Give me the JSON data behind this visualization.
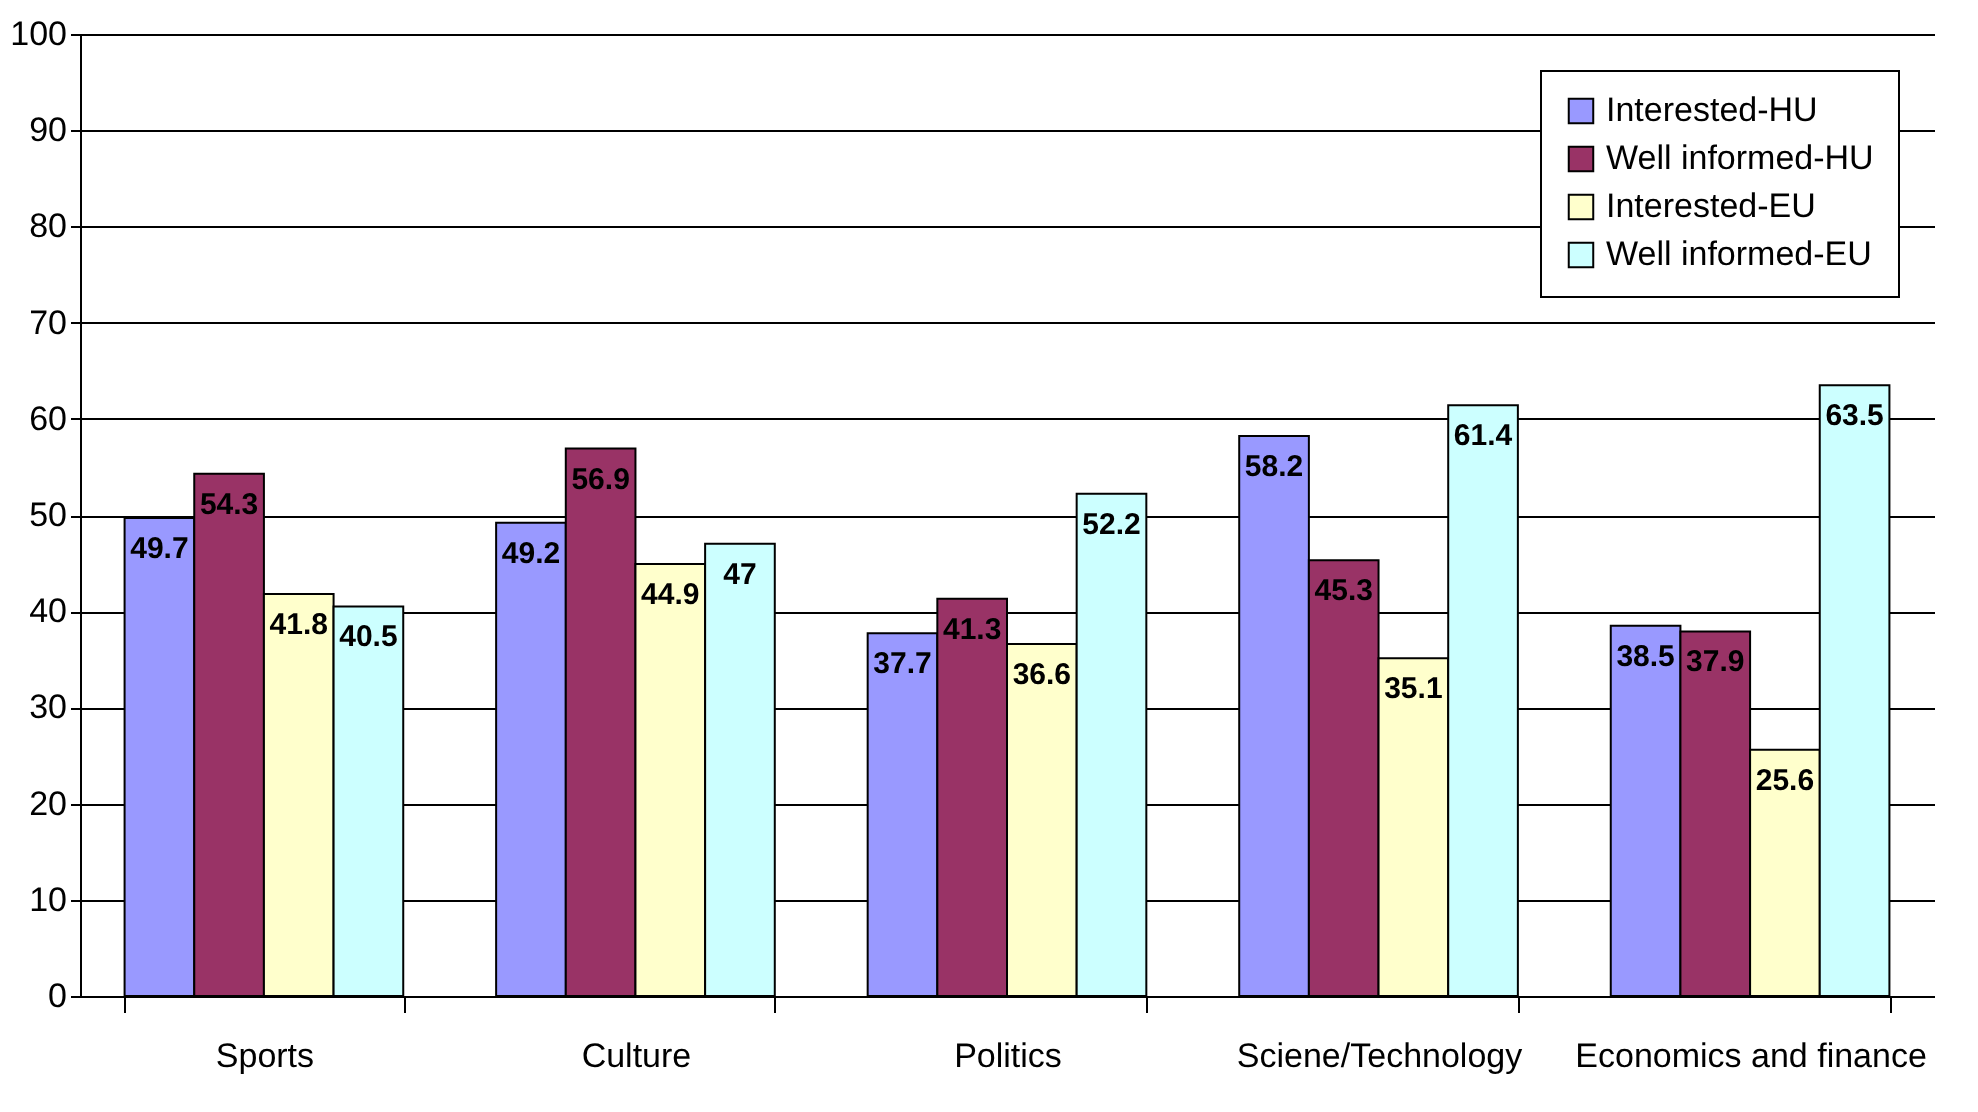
{
  "chart_data": {
    "type": "bar",
    "categories": [
      "Sports",
      "Culture",
      "Politics",
      "Sciene/Technology",
      "Economics and finance"
    ],
    "series": [
      {
        "name": "Interested-HU",
        "color": "#9999ff",
        "values": [
          49.7,
          49.2,
          37.7,
          58.2,
          38.5
        ]
      },
      {
        "name": "Well informed-HU",
        "color": "#993366",
        "values": [
          54.3,
          56.9,
          41.3,
          45.3,
          37.9
        ]
      },
      {
        "name": "Interested-EU",
        "color": "#ffffcc",
        "values": [
          41.8,
          44.9,
          36.6,
          35.1,
          25.6
        ]
      },
      {
        "name": "Well informed-EU",
        "color": "#ccffff",
        "values": [
          40.5,
          47,
          52.2,
          61.4,
          63.5
        ]
      }
    ],
    "ylim": [
      0,
      100
    ],
    "yticks": [
      0,
      10,
      20,
      30,
      40,
      50,
      60,
      70,
      80,
      90,
      100
    ],
    "grid": "y",
    "legend": "top right",
    "data_labels": true
  }
}
